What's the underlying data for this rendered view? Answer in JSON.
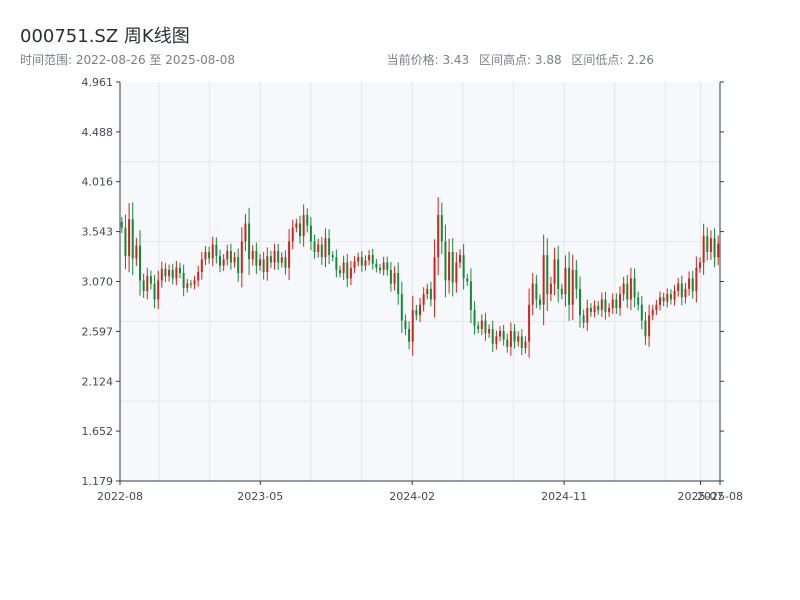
{
  "header": {
    "title": "000751.SZ 周K线图",
    "range_text": "时间范围: 2022-08-26 至 2025-08-08",
    "current_price_text": "当前价格: 3.43",
    "range_high_text": "区间高点: 3.88",
    "range_low_text": "区间低点: 2.26"
  },
  "colors": {
    "up": "#d0231c",
    "down": "#138a36",
    "plot_bg": "#f6f8fb",
    "grid": "#e3e6ea",
    "axis": "#2f3b48"
  },
  "chart_data": {
    "type": "candlestick",
    "title": "000751.SZ 周K线图",
    "ylim": [
      1.179,
      4.961
    ],
    "yticks": [
      "4.961",
      "4.488",
      "4.016",
      "3.543",
      "3.070",
      "2.597",
      "2.124",
      "1.652",
      "1.179"
    ],
    "xticks": [
      {
        "date": "2022-08-26",
        "label": "2022-08"
      },
      {
        "date": "2023-05-05",
        "label": "2023-05"
      },
      {
        "date": "2024-02-02",
        "label": "2024-02"
      },
      {
        "date": "2024-11-01",
        "label": "2024-11"
      },
      {
        "date": "2025-07-04",
        "label": "2025-07"
      },
      {
        "date": "2025-08-08",
        "label": "2025-08"
      }
    ],
    "start_date": "2022-08-26",
    "end_date": "2025-08-08",
    "range_high": 3.88,
    "range_low": 2.26,
    "current_price": 3.43,
    "closes": [
      3.58,
      3.31,
      3.66,
      3.29,
      3.41,
      3.08,
      2.98,
      3.12,
      3.05,
      2.9,
      3.08,
      3.19,
      3.12,
      3.18,
      3.1,
      3.2,
      3.15,
      3.01,
      3.05,
      3.04,
      3.08,
      3.16,
      3.28,
      3.35,
      3.29,
      3.42,
      3.31,
      3.22,
      3.28,
      3.36,
      3.25,
      3.3,
      3.15,
      3.45,
      3.62,
      3.28,
      3.36,
      3.22,
      3.28,
      3.16,
      3.31,
      3.25,
      3.36,
      3.25,
      3.3,
      3.2,
      3.45,
      3.58,
      3.62,
      3.5,
      3.7,
      3.6,
      3.45,
      3.35,
      3.42,
      3.3,
      3.48,
      3.32,
      3.3,
      3.18,
      3.15,
      3.25,
      3.1,
      3.2,
      3.26,
      3.3,
      3.22,
      3.27,
      3.32,
      3.24,
      3.2,
      3.18,
      3.25,
      3.18,
      3.05,
      3.15,
      2.95,
      2.7,
      2.62,
      2.5,
      2.8,
      2.75,
      2.85,
      2.95,
      3.0,
      2.9,
      3.3,
      3.7,
      3.45,
      3.08,
      3.35,
      3.06,
      3.25,
      3.32,
      3.1,
      3.07,
      2.8,
      2.65,
      2.62,
      2.7,
      2.58,
      2.62,
      2.48,
      2.55,
      2.6,
      2.52,
      2.45,
      2.6,
      2.5,
      2.55,
      2.44,
      2.5,
      2.85,
      3.05,
      2.9,
      2.85,
      3.32,
      2.95,
      3.05,
      3.28,
      3.0,
      2.95,
      3.2,
      2.85,
      3.18,
      3.0,
      2.75,
      2.68,
      2.82,
      2.78,
      2.84,
      2.8,
      2.9,
      2.78,
      2.82,
      2.9,
      2.82,
      2.95,
      3.05,
      2.9,
      3.1,
      2.92,
      2.85,
      2.7,
      2.55,
      2.75,
      2.8,
      2.85,
      2.92,
      2.88,
      2.95,
      2.9,
      2.98,
      3.05,
      2.92,
      3.0,
      3.1,
      2.98,
      3.2,
      3.25,
      3.5,
      3.35,
      3.48,
      3.3,
      3.43
    ]
  }
}
